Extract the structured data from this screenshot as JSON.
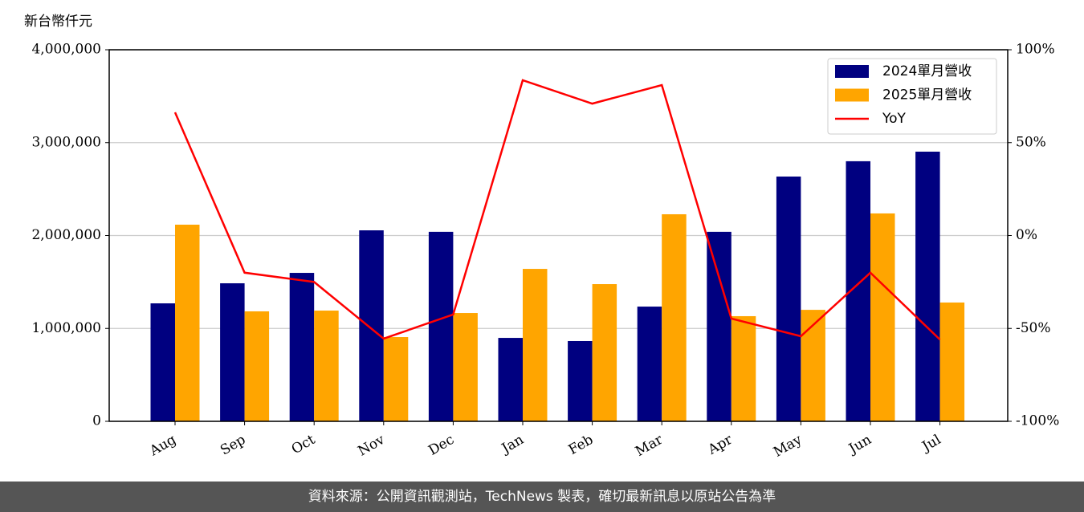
{
  "chart_data": {
    "type": "bar",
    "y_label": "新台幣仟元",
    "categories": [
      "Aug",
      "Sep",
      "Oct",
      "Nov",
      "Dec",
      "Jan",
      "Feb",
      "Mar",
      "Apr",
      "May",
      "Jun",
      "Jul"
    ],
    "series": [
      {
        "name": "2024單月營收",
        "color": "#000080",
        "values": [
          1270000,
          1486000,
          1598000,
          2056000,
          2040000,
          898000,
          864000,
          1235000,
          2040000,
          2635000,
          2800000,
          2903000
        ]
      },
      {
        "name": "2025單月營收",
        "color": "#ffa500",
        "values": [
          2117000,
          1184000,
          1192000,
          907000,
          1166000,
          1641000,
          1477000,
          2229000,
          1132000,
          1200000,
          2238000,
          1279000
        ]
      },
      {
        "name": "YoY",
        "color": "#ff0000",
        "type": "line",
        "axis": "y2",
        "values": [
          66.3,
          -20,
          -25,
          -55.5,
          -42.5,
          83.6,
          71,
          81,
          -44.7,
          -54.2,
          -20,
          -56
        ]
      }
    ],
    "ylim": [
      0,
      4000000
    ],
    "yticks": [
      0,
      {
        "value": 1000000,
        "label": "1,000,000"
      },
      {
        "value": 2000000,
        "label": "2,000,000"
      },
      {
        "value": 3000000,
        "label": "3,000,000"
      },
      {
        "value": 4000000,
        "label": "4,000,000"
      }
    ],
    "y2lim": [
      -100,
      100
    ],
    "y2ticks": [
      {
        "value": -100,
        "label": "-100%"
      },
      {
        "value": -50,
        "label": "-50%"
      },
      {
        "value": 0,
        "label": "0%"
      },
      {
        "value": 50,
        "label": "50%"
      },
      {
        "value": 100,
        "label": "100%"
      }
    ],
    "grid": true,
    "legend": "upper right"
  },
  "footer": {
    "text": "資料來源：公開資訊觀測站，TechNews 製表，確切最新訊息以原站公告為準"
  }
}
